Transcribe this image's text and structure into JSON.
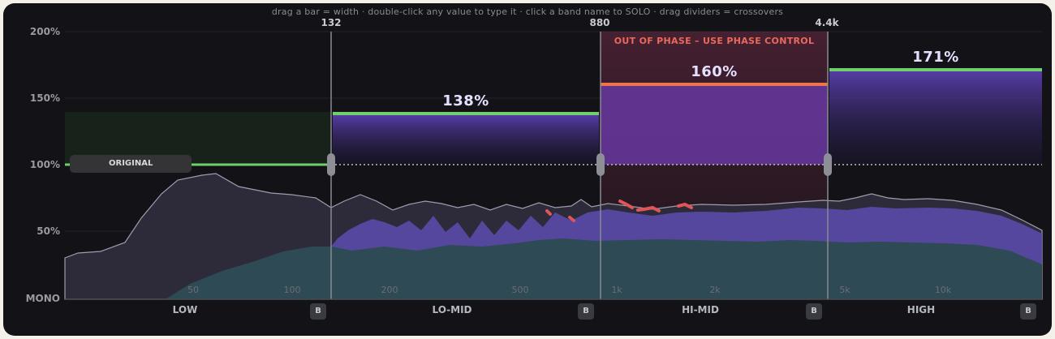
{
  "hint": "drag a bar = width  ·  double-click any value to type it  ·  click a band name to SOLO  ·  drag dividers = crossovers",
  "y_axis": [
    "200%",
    "150%",
    "100%",
    "50%",
    "MONO"
  ],
  "crossovers": [
    "132",
    "880",
    "4.4k"
  ],
  "freq_ticks": [
    "50",
    "100",
    "200",
    "500",
    "1k",
    "2k",
    "5k",
    "10k"
  ],
  "original_label": "ORIGINAL",
  "warning": "OUT OF PHASE – USE PHASE CONTROL",
  "bands": [
    {
      "name": "LOW",
      "width_pct": 100,
      "value": "",
      "solo": "B",
      "color": "#6fcf6a"
    },
    {
      "name": "LO-MID",
      "width_pct": 138,
      "value": "138%",
      "solo": "B",
      "color": "#6fcf6a"
    },
    {
      "name": "HI-MID",
      "width_pct": 160,
      "value": "160%",
      "solo": "B",
      "color": "#f0744a"
    },
    {
      "name": "HIGH",
      "width_pct": 171,
      "value": "171%",
      "solo": "B",
      "color": "#6fcf6a"
    }
  ],
  "colors": {
    "bar_ok": "#6fcf6a",
    "bar_warn": "#f0744a",
    "warn_text": "#e86b5c",
    "purple": "#5b3fae",
    "teal": "#2f4a55"
  }
}
